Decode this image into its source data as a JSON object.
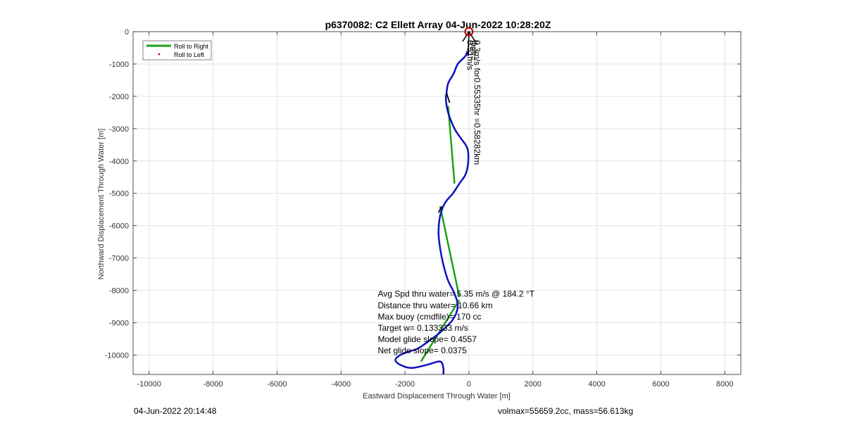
{
  "chart_data": {
    "type": "line",
    "title": "p6370082: C2 Ellett Array 04-Jun-2022 10:28:20Z",
    "xlabel": "Eastward Displacement Through Water [m]",
    "ylabel": "Northward Displacement Through Water [m]",
    "xlim": [
      -10500,
      8500
    ],
    "ylim": [
      -10600,
      0
    ],
    "x_ticks": [
      -10000,
      -8000,
      -6000,
      -4000,
      -2000,
      0,
      2000,
      4000,
      6000,
      8000
    ],
    "y_ticks": [
      0,
      -1000,
      -2000,
      -3000,
      -4000,
      -5000,
      -6000,
      -7000,
      -8000,
      -9000,
      -10000
    ],
    "grid": true,
    "legend_position": "top-left",
    "legend": [
      {
        "name": "Roll to Right",
        "color": "#1aa31a",
        "style": "line"
      },
      {
        "name": "Roll to Left",
        "color": "#cc0000",
        "style": "dot"
      }
    ],
    "series": [
      {
        "type": "dive-track",
        "color": "#1010c0",
        "x": [
          -50,
          -80,
          -150,
          -350,
          -480,
          -650,
          -700,
          -720,
          -650,
          -450,
          -250,
          -50,
          -20,
          -100,
          -300,
          -500,
          -750,
          -900,
          -950,
          -900,
          -800,
          -650,
          -450,
          -350,
          -500,
          -900,
          -1300,
          -1600,
          -1900,
          -2150,
          -2300,
          -2150,
          -1800,
          -1300,
          -900,
          -800,
          -800
        ],
        "y": [
          -600,
          -700,
          -800,
          -1000,
          -1300,
          -1600,
          -1900,
          -2100,
          -2500,
          -3000,
          -3300,
          -3600,
          -4000,
          -4400,
          -4700,
          -5000,
          -5300,
          -5700,
          -6200,
          -6700,
          -7200,
          -7700,
          -8100,
          -8500,
          -8900,
          -9300,
          -9600,
          -9800,
          -9900,
          -10000,
          -10150,
          -10300,
          -10400,
          -10300,
          -10200,
          -10400,
          -10600
        ]
      },
      {
        "type": "roll-right-segments",
        "color": "#1aa31a",
        "segments": [
          {
            "x": [
              -650,
              -450
            ],
            "y": [
              -2300,
              -4700
            ]
          },
          {
            "x": [
              -900,
              -300
            ],
            "y": [
              -5400,
              -8200
            ]
          },
          {
            "x": [
              -300,
              -1500
            ],
            "y": [
              -8300,
              -10200
            ]
          }
        ]
      },
      {
        "type": "black-segments",
        "color": "#000000",
        "segments": [
          {
            "x": [
              -950,
              -850
            ],
            "y": [
              -5600,
              -5400
            ]
          },
          {
            "x": [
              -600,
              -700
            ],
            "y": [
              -2200,
              -1900
            ]
          }
        ]
      }
    ],
    "markers": [
      {
        "type": "circle",
        "color": "#cc0000",
        "x": 0,
        "y": 0
      }
    ],
    "arrow": {
      "from": [
        -20,
        -750
      ],
      "to": [
        0,
        0
      ]
    },
    "annotations": [
      {
        "text": "Avg Spd thru water=  5.35 m/s @ 184.2 °T",
        "x": -2850,
        "y": -8200
      },
      {
        "text": "Distance thru water= 10.66 km",
        "x": -2850,
        "y": -8550
      },
      {
        "text": "Max buoy (cmdfile)= 170 cc",
        "x": -2850,
        "y": -8900
      },
      {
        "text": "Target w= 0.133333 m/s",
        "x": -2850,
        "y": -9250
      },
      {
        "text": "Model glide slope= 0.4557",
        "x": -2850,
        "y": -9600
      },
      {
        "text": "Net glide slope= 0.0375",
        "x": -2850,
        "y": -9950
      }
    ],
    "rotated_annotations": [
      {
        "text": "0.51m/s",
        "x": -100,
        "y": 0
      },
      {
        "text": "Drift=",
        "x": 0,
        "y": 0
      },
      {
        "text": "ft",
        "x": 50,
        "y": 0
      },
      {
        "text": "0.3m/s for0.55335hr =0.58282km",
        "x": 120,
        "y": 0
      }
    ]
  },
  "footer": {
    "left": "04-Jun-2022 20:14:48",
    "right": "volmax=55659.2cc, mass=56.613kg"
  }
}
